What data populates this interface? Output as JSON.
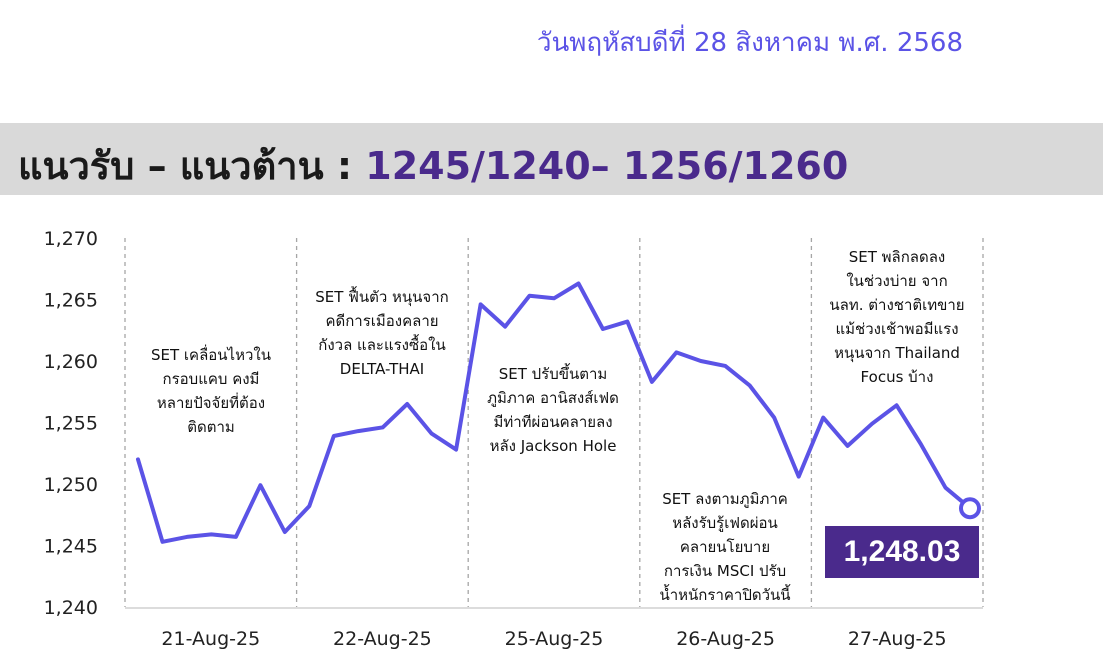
{
  "header": {
    "date": "วันพฤหัสบดีที่ 28 สิงหาคม พ.ศ. 2568",
    "title_prefix": "แนวรับ – แนวต้าน : ",
    "title_levels": "1245/1240– 1256/1260"
  },
  "chart_data": {
    "type": "line",
    "title": "",
    "xlabel": "",
    "ylabel": "",
    "ylim": [
      1240,
      1270
    ],
    "yticks": [
      1240,
      1245,
      1250,
      1255,
      1260,
      1265,
      1270
    ],
    "ytick_labels": [
      "1,240",
      "1,245",
      "1,250",
      "1,255",
      "1,260",
      "1,265",
      "1,270"
    ],
    "grid": false,
    "sessions": [
      "21-Aug-25",
      "22-Aug-25",
      "25-Aug-25",
      "26-Aug-25",
      "27-Aug-25"
    ],
    "series": [
      {
        "color": "#5b53e6",
        "values": [
          1252.0,
          1245.3,
          1245.7,
          1245.9,
          1245.7,
          1249.9,
          1246.1,
          1248.2,
          1253.9,
          1254.3,
          1254.6,
          1256.5,
          1254.1,
          1252.8,
          1264.6,
          1262.8,
          1265.3,
          1265.1,
          1266.3,
          1262.6,
          1263.2,
          1258.3,
          1260.7,
          1260.0,
          1259.6,
          1258.0,
          1255.4,
          1250.6,
          1255.4,
          1253.1,
          1254.9,
          1256.4,
          1253.2,
          1249.7,
          1248.03
        ]
      }
    ],
    "last_value": 1248.03,
    "last_value_label": "1,248.03",
    "annotations": [
      "SET เคลื่อนไหวใน\nกรอบแคบ คงมี\nหลายปัจจัยที่ต้อง\nติดตาม",
      "SET ฟื้นตัว หนุนจาก\nคดีการเมืองคลาย\nกังวล และแรงซื้อใน\nDELTA-THAI",
      "SET ปรับขึ้นตาม\nภูมิภาค อานิสงส์เฟด\nมีท่าทีผ่อนคลายลง\nหลัง Jackson Hole",
      "SET ลงตามภูมิภาค\nหลังรับรู้เฟดผ่อน\nคลายนโยบาย\nการเงิน MSCI ปรับ\nน้ำหนักราคาปิดวันนี้",
      "SET พลิกลดลง\nในช่วงบ่าย จาก\nนลท. ต่างชาติเทขาย\nแม้ช่วงเช้าพอมีแรง\nหนุนจาก Thailand\nFocus บ้าง"
    ]
  }
}
